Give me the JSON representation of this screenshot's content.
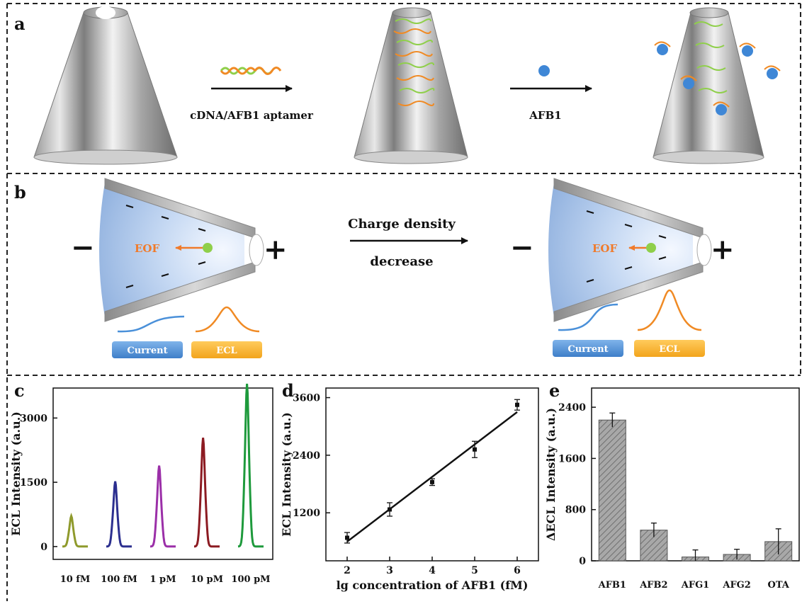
{
  "panels": {
    "a": {
      "letter": "a",
      "step1_label": "cDNA/AFB1 aptamer",
      "step2_label": "AFB1"
    },
    "b": {
      "letter": "b",
      "minus_sign": "−",
      "plus_sign": "+",
      "flow_label": "EOF",
      "arrow_top_label": "Charge density",
      "arrow_bottom_label": "decrease",
      "legend_current": "Current",
      "legend_ecl": "ECL",
      "colors": {
        "current": "#4a90d9",
        "ecl": "#f08a24",
        "eof": "#f07a2a",
        "particle": "#8fcf4a"
      }
    },
    "c": {
      "letter": "c"
    },
    "d": {
      "letter": "d"
    },
    "e": {
      "letter": "e"
    }
  },
  "chart_data": [
    {
      "type": "line",
      "panel": "c",
      "ylabel": "ECL Intensity (a.u.)",
      "yticks": [
        0,
        1500,
        3000
      ],
      "ylim": [
        -300,
        3700
      ],
      "categories": [
        "10 fM",
        "100 fM",
        "1 pM",
        "10 pM",
        "100 pM"
      ],
      "peaks": [
        680,
        1450,
        1800,
        2420,
        3620
      ],
      "colors": [
        "#8f9a2c",
        "#2c2f8f",
        "#9b2fa8",
        "#8c1b22",
        "#1e9a3c"
      ]
    },
    {
      "type": "scatter",
      "panel": "d",
      "xlabel": "lg concentration of AFB1 (fM)",
      "ylabel": "ECL Intensity (a.u.)",
      "x": [
        2,
        3,
        4,
        5,
        6
      ],
      "y": [
        680,
        1270,
        1840,
        2520,
        3450
      ],
      "errors": [
        110,
        140,
        70,
        170,
        110
      ],
      "fit": {
        "x": [
          2,
          6
        ],
        "y": [
          600,
          3300
        ]
      },
      "xticks": [
        2,
        3,
        4,
        5,
        6
      ],
      "yticks": [
        1200,
        2400,
        3600
      ],
      "xlim": [
        1.5,
        6.5
      ],
      "ylim": [
        200,
        3800
      ]
    },
    {
      "type": "bar",
      "panel": "e",
      "ylabel": "ΔECL Intensity (a.u.)",
      "categories": [
        "AFB1",
        "AFB2",
        "AFG1",
        "AFG2",
        "OTA"
      ],
      "values": [
        2200,
        480,
        60,
        100,
        300
      ],
      "errors": [
        110,
        110,
        110,
        80,
        200
      ],
      "yticks": [
        0,
        800,
        1600,
        2400
      ],
      "ylim": [
        0,
        2700
      ]
    }
  ]
}
